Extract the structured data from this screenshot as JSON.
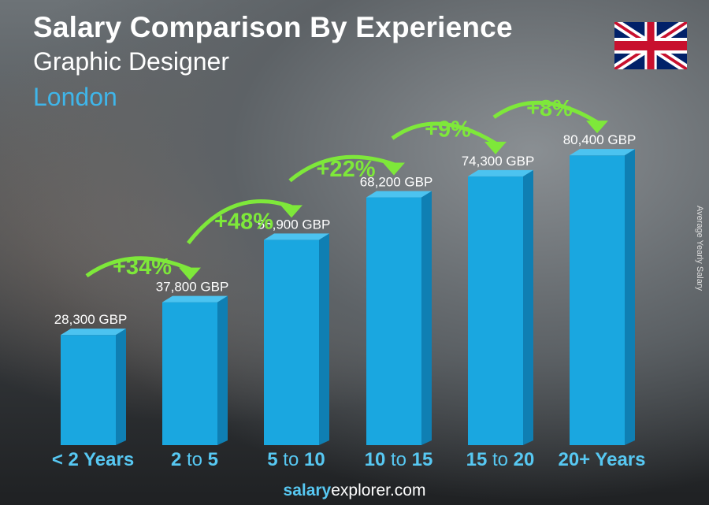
{
  "title": "Salary Comparison By Experience",
  "subtitle": "Graphic Designer",
  "location": "London",
  "flag_icon": "uk-flag-icon",
  "brand": {
    "bold": "salary",
    "rest": "explorer.com"
  },
  "chart_data": {
    "type": "bar",
    "ylabel": "Average Yearly Salary",
    "categories": [
      {
        "a": "< 2 Years",
        "to": "",
        "b": ""
      },
      {
        "a": "2",
        "to": " to ",
        "b": "5"
      },
      {
        "a": "5",
        "to": " to ",
        "b": "10"
      },
      {
        "a": "10",
        "to": " to ",
        "b": "15"
      },
      {
        "a": "15",
        "to": " to ",
        "b": "20"
      },
      {
        "a": "20+ Years",
        "to": "",
        "b": ""
      }
    ],
    "values": [
      28300,
      37800,
      55900,
      68200,
      74300,
      80400
    ],
    "value_labels": [
      "28,300 GBP",
      "37,800 GBP",
      "55,900 GBP",
      "68,200 GBP",
      "74,300 GBP",
      "80,400 GBP"
    ],
    "changes": [
      "+34%",
      "+48%",
      "+22%",
      "+9%",
      "+8%"
    ],
    "colors": {
      "bar": "#1aa7e0",
      "bar_side": "#0f7fb3",
      "bar_top": "#4cc3f0",
      "change": "#7ee83a",
      "category": "#57c8f2"
    }
  }
}
